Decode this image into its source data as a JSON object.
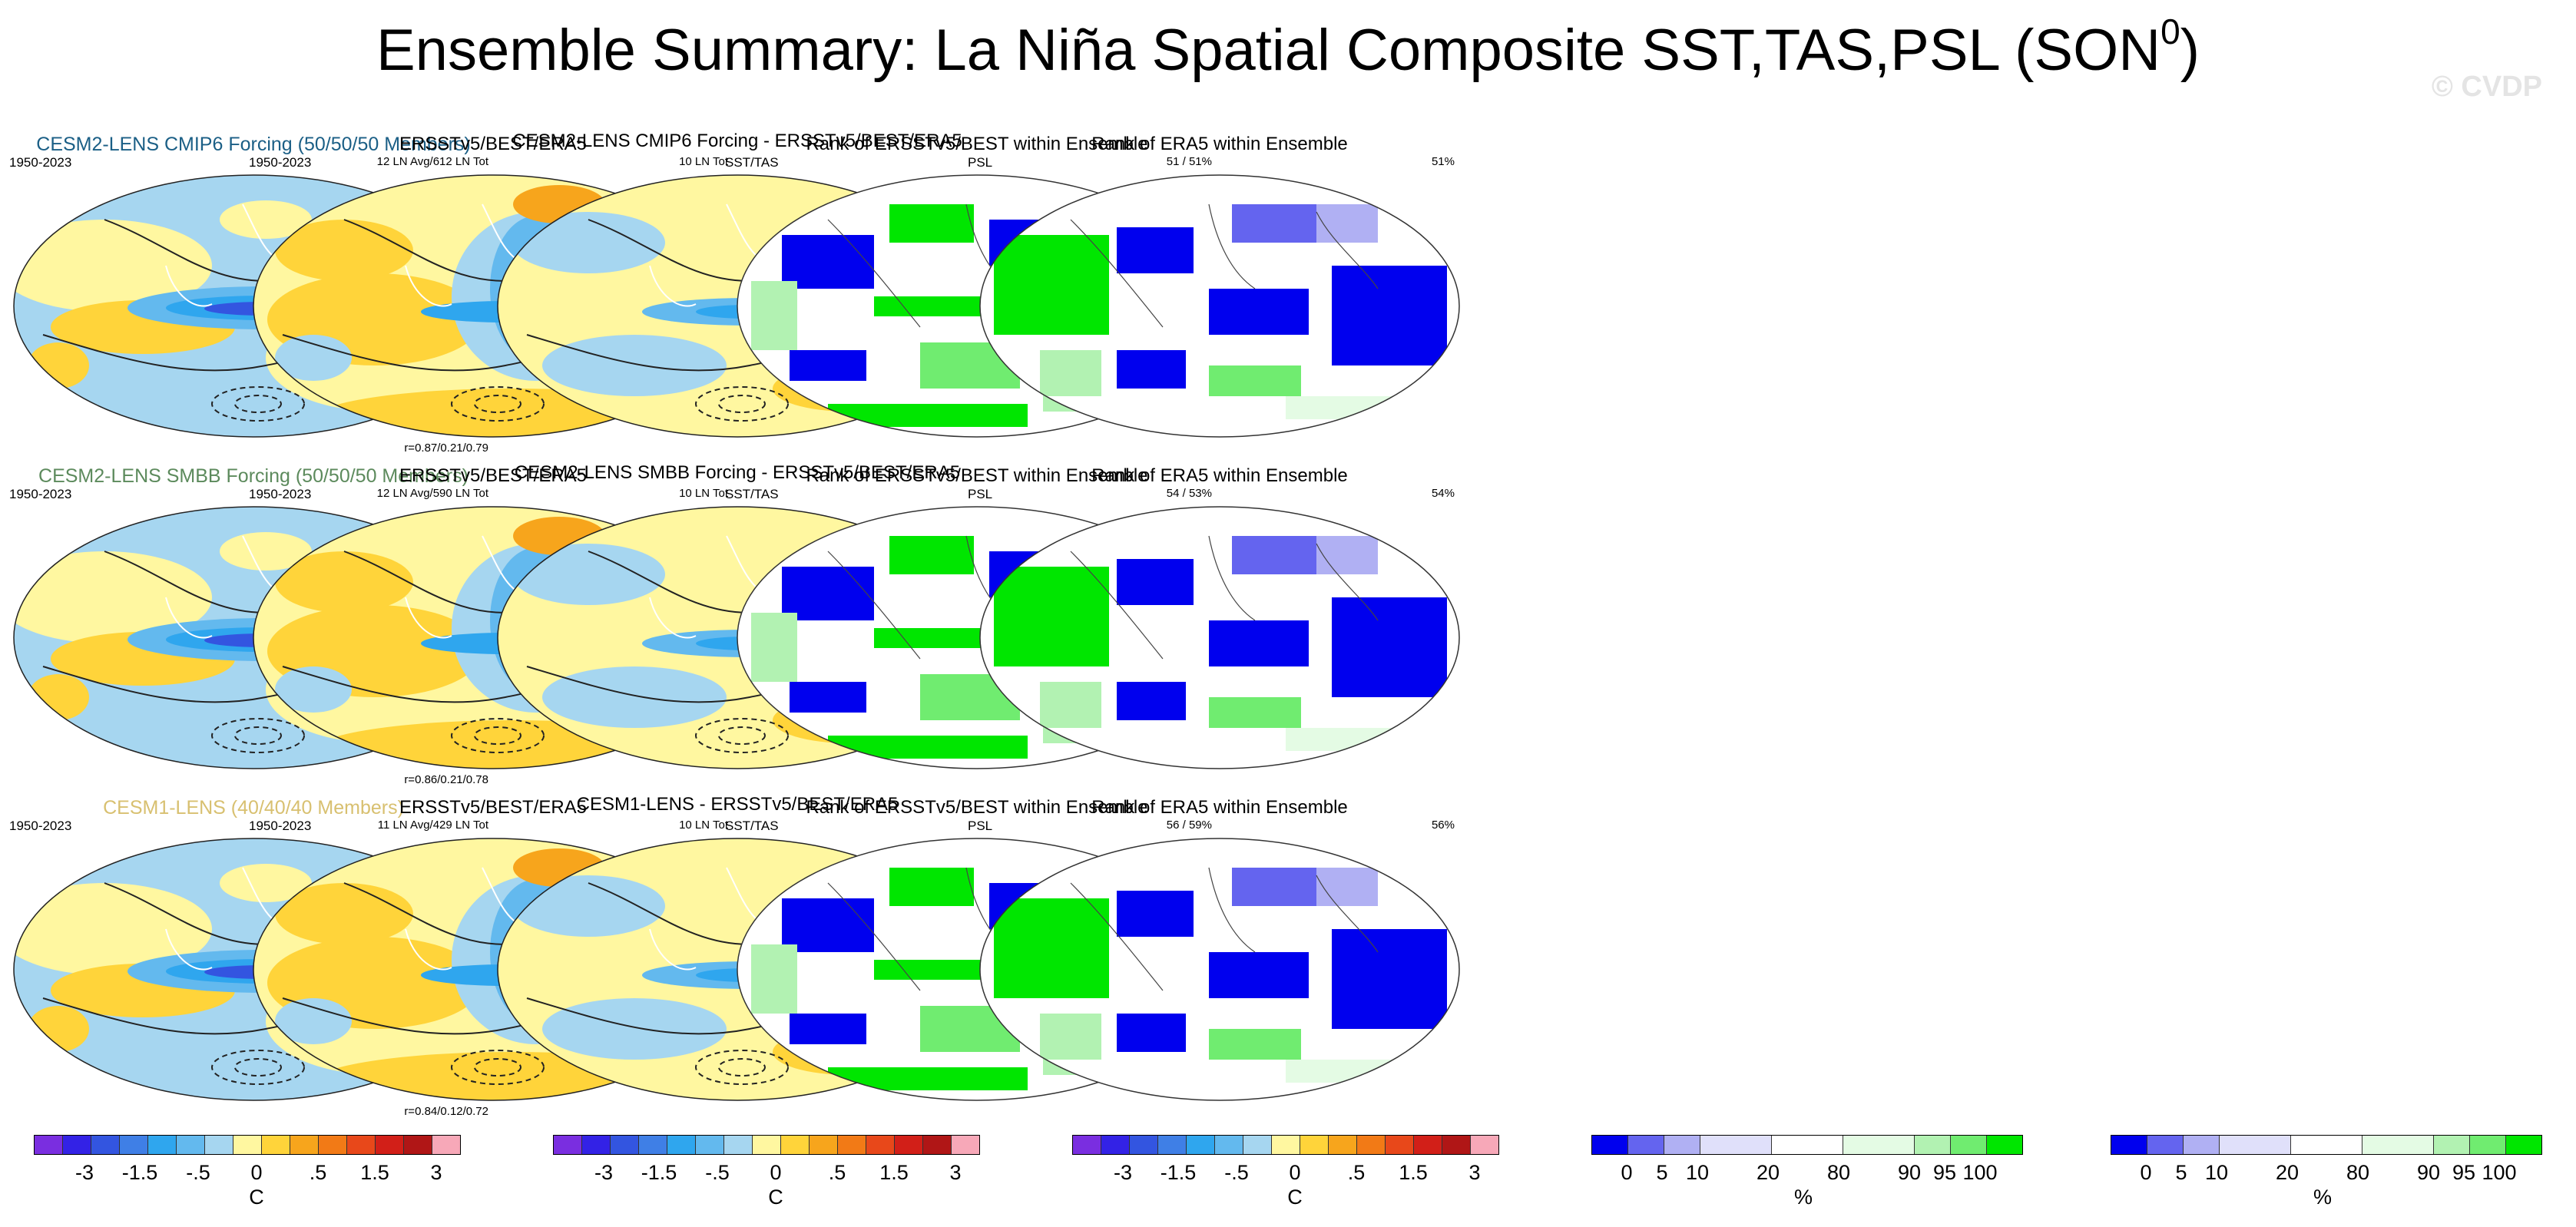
{
  "title": "Ensemble Summary: La Niña Spatial Composite SST,TAS,PSL (SON",
  "title_sup": "0",
  "title_close": ")",
  "watermark": "© CVDP",
  "colors": {
    "anom": [
      "#7a2ee0",
      "#3322e6",
      "#3355e0",
      "#3f7fe6",
      "#2fa6ee",
      "#63b9ee",
      "#a6d6f0",
      "#fff7a0",
      "#ffd43a",
      "#f7a51c",
      "#f27a16",
      "#e8481a",
      "#d21f18",
      "#b01616",
      "#f7a8b8"
    ],
    "rank": [
      "#0000ee",
      "#6464ef",
      "#b0b0f3",
      "#e0e0fa",
      "#ffffff",
      "#e4fbe4",
      "#b2f2b2",
      "#70ec70",
      "#00e600"
    ]
  },
  "rows": [
    {
      "p1": {
        "title": "CESM2-LENS CMIP6 Forcing (50/50/50 Members)",
        "title_color": "#1b5f86",
        "years": "1950-2023",
        "info": "12 LN Avg/612 LN Tot",
        "stat": "r=0.87/0.21/0.79"
      },
      "p2": {
        "title": "ERSSTv5/BEST/ERA5",
        "years": "1950-2023",
        "info": "10 LN Tot"
      },
      "p3": {
        "title": "CESM2-LENS CMIP6 Forcing - ERSSTv5/BEST/ERA5"
      },
      "p4": {
        "title": "Rank of ERSSTv5/BEST within Ensemble",
        "label": "SST/TAS",
        "info": "51 /  51%"
      },
      "p5": {
        "title": "Rank of ERA5 within Ensemble",
        "label": "PSL",
        "info": "51%"
      }
    },
    {
      "p1": {
        "title": "CESM2-LENS SMBB Forcing (50/50/50 Members)",
        "title_color": "#5c8a5c",
        "years": "1950-2023",
        "info": "12 LN Avg/590 LN Tot",
        "stat": "r=0.86/0.21/0.78"
      },
      "p2": {
        "title": "ERSSTv5/BEST/ERA5",
        "years": "1950-2023",
        "info": "10 LN Tot"
      },
      "p3": {
        "title": "CESM2-LENS SMBB Forcing - ERSSTv5/BEST/ERA5"
      },
      "p4": {
        "title": "Rank of ERSSTv5/BEST within Ensemble",
        "label": "SST/TAS",
        "info": "54 /  53%"
      },
      "p5": {
        "title": "Rank of ERA5 within Ensemble",
        "label": "PSL",
        "info": "54%"
      }
    },
    {
      "p1": {
        "title": "CESM1-LENS (40/40/40 Members)",
        "title_color": "#d8c070",
        "years": "1950-2023",
        "info": "11 LN Avg/429 LN Tot",
        "stat": "r=0.84/0.12/0.72"
      },
      "p2": {
        "title": "ERSSTv5/BEST/ERA5",
        "years": "1950-2023",
        "info": "10 LN Tot"
      },
      "p3": {
        "title": "CESM1-LENS - ERSSTv5/BEST/ERA5"
      },
      "p4": {
        "title": "Rank of ERSSTv5/BEST within Ensemble",
        "label": "SST/TAS",
        "info": "56 /  59%"
      },
      "p5": {
        "title": "Rank of ERA5 within Ensemble",
        "label": "PSL",
        "info": "56%"
      }
    }
  ],
  "anom_bar": {
    "ticks": [
      "-3",
      "-1.5",
      "-.5",
      "0",
      ".5",
      "1.5",
      "3"
    ],
    "unit": "C"
  },
  "rank_bar": {
    "ticks": [
      "0",
      "5",
      "10",
      "20",
      "80",
      "90",
      "95",
      "100"
    ],
    "unit": "%"
  }
}
